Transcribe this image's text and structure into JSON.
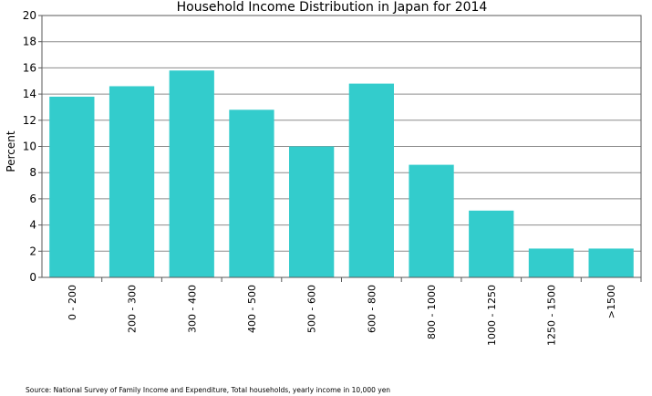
{
  "chart_data": {
    "type": "bar",
    "title": "Household Income Distribution in Japan for 2014",
    "xlabel": "",
    "ylabel": "Percent",
    "ylim": [
      0,
      20
    ],
    "yticks": [
      0,
      2,
      4,
      6,
      8,
      10,
      12,
      14,
      16,
      18,
      20
    ],
    "grid": true,
    "categories": [
      "0 - 200",
      "200 - 300",
      "300 - 400",
      "400 - 500",
      "500 - 600",
      "600 - 800",
      "800 - 1000",
      "1000 - 1250",
      "1250 - 1500",
      ">1500"
    ],
    "values": [
      13.8,
      14.6,
      15.8,
      12.8,
      10.0,
      14.8,
      8.6,
      5.1,
      2.2,
      2.2
    ],
    "bar_color": "#33cccc",
    "source": "Source: National Survey of Family Income and Expenditure, Total households, yearly income in 10,000 yen"
  }
}
